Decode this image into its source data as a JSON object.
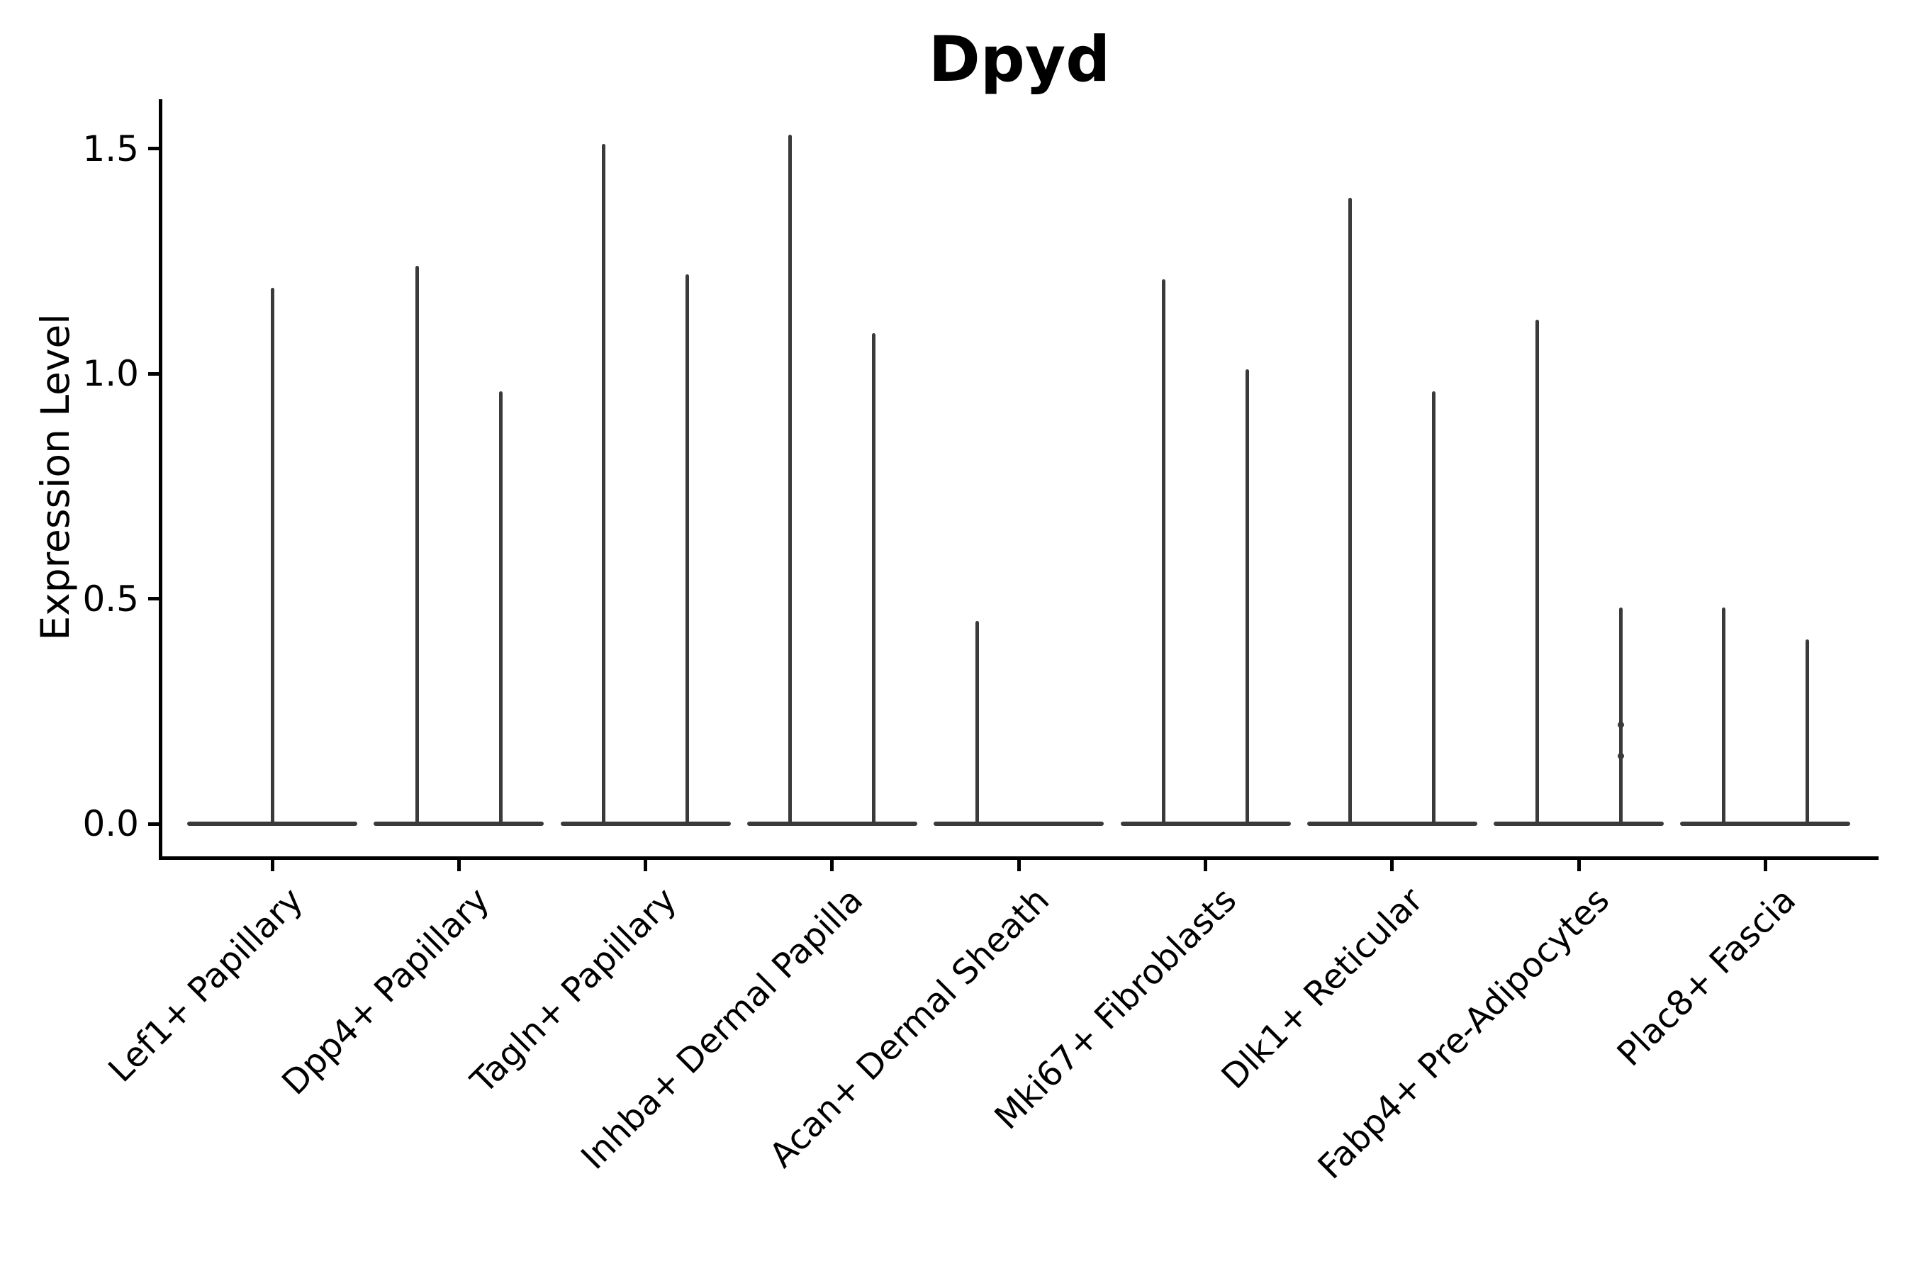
{
  "chart_data": {
    "type": "violin",
    "title": "Dpyd",
    "ylabel": "Expression Level",
    "xlabel": "",
    "ylim": [
      -0.08,
      1.61
    ],
    "yticks": [
      {
        "label": "0.0",
        "value": 0.0
      },
      {
        "label": "0.5",
        "value": 0.5
      },
      {
        "label": "1.0",
        "value": 1.0
      },
      {
        "label": "1.5",
        "value": 1.5
      }
    ],
    "grid": "off",
    "legend": "none",
    "categories": [
      "Lef1+ Papillary",
      "Dpp4+ Papillary",
      "Tagln+ Papillary",
      "Inhba+ Dermal Papilla",
      "Acan+ Dermal Sheath",
      "Mki67+ Fibroblasts",
      "Dlk1+ Reticular",
      "Fabp4+ Pre-Adipocytes",
      "Plac8+ Fascia"
    ],
    "description": "Each category shows a flat violin body at expression 0 with thin spikes rising to the maximum expression of the rare expressing cells; most categories contain two side-by-side violins.",
    "violins": [
      {
        "category": "Lef1+ Papillary",
        "baseline": 0.0,
        "spikes": [
          {
            "pos": "center",
            "max": 1.19
          }
        ]
      },
      {
        "category": "Dpp4+ Papillary",
        "baseline": 0.0,
        "spikes": [
          {
            "pos": "left",
            "max": 1.24
          },
          {
            "pos": "right",
            "max": 0.96
          }
        ]
      },
      {
        "category": "Tagln+ Papillary",
        "baseline": 0.0,
        "spikes": [
          {
            "pos": "left",
            "max": 1.51
          },
          {
            "pos": "right",
            "max": 1.22
          }
        ]
      },
      {
        "category": "Inhba+ Dermal Papilla",
        "baseline": 0.0,
        "spikes": [
          {
            "pos": "left",
            "max": 1.53
          },
          {
            "pos": "right",
            "max": 1.09
          }
        ]
      },
      {
        "category": "Acan+ Dermal Sheath",
        "baseline": 0.0,
        "spikes": [
          {
            "pos": "left",
            "max": 0.45
          }
        ]
      },
      {
        "category": "Mki67+ Fibroblasts",
        "baseline": 0.0,
        "spikes": [
          {
            "pos": "left",
            "max": 1.21
          },
          {
            "pos": "right",
            "max": 1.01
          }
        ]
      },
      {
        "category": "Dlk1+ Reticular",
        "baseline": 0.0,
        "spikes": [
          {
            "pos": "left",
            "max": 1.39
          },
          {
            "pos": "right",
            "max": 0.96
          }
        ]
      },
      {
        "category": "Fabp4+ Pre-Adipocytes",
        "baseline": 0.0,
        "spikes": [
          {
            "pos": "left",
            "max": 1.12
          },
          {
            "pos": "right",
            "max": 0.48,
            "knots": [
              0.22,
              0.15
            ]
          }
        ]
      },
      {
        "category": "Plac8+ Fascia",
        "baseline": 0.0,
        "spikes": [
          {
            "pos": "left",
            "max": 0.48
          },
          {
            "pos": "right",
            "max": 0.41
          }
        ]
      }
    ],
    "colors": {
      "violin": "#3a3a3a",
      "axis": "#000000",
      "background": "#ffffff"
    }
  }
}
